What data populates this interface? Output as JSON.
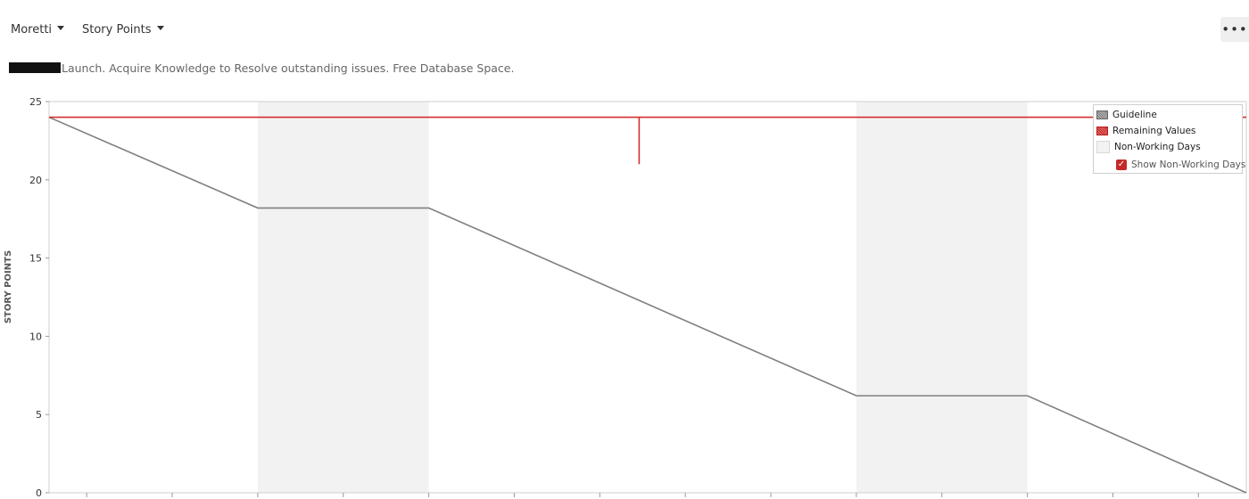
{
  "toolbar": {
    "user_dropdown": "Moretti",
    "metric_dropdown": "Story Points",
    "more_label": "•••"
  },
  "subtitle": "Launch. Acquire Knowledge to Resolve outstanding issues. Free Database Space.",
  "colors": {
    "guideline": "#7f7f7f",
    "remaining": "#d32f2f",
    "non_working": "#f2f2f2",
    "accent": "#c62828"
  },
  "legend": {
    "guideline": "Guideline",
    "remaining": "Remaining Values",
    "non_working": "Non-Working Days",
    "show_non_working": "Show Non-Working Days",
    "show_non_working_checked": true
  },
  "chart_data": {
    "type": "line",
    "ylabel": "STORY POINTS",
    "ylim": [
      0,
      25
    ],
    "yticks": [
      0,
      5,
      10,
      15,
      20,
      25
    ],
    "xlim": [
      0,
      14
    ],
    "grid": false,
    "legend_position": "top-right",
    "non_working_periods": [
      [
        2.44,
        4.44
      ],
      [
        9.44,
        11.44
      ]
    ],
    "series": [
      {
        "name": "Guideline",
        "x": [
          0,
          2.44,
          4.44,
          9.44,
          11.44,
          14
        ],
        "y": [
          24,
          18.2,
          18.2,
          6.2,
          6.2,
          0
        ]
      },
      {
        "name": "Remaining Values",
        "x": [
          0,
          6.9,
          6.9,
          6.9,
          14
        ],
        "y": [
          24,
          24,
          21,
          24,
          24
        ]
      }
    ]
  }
}
